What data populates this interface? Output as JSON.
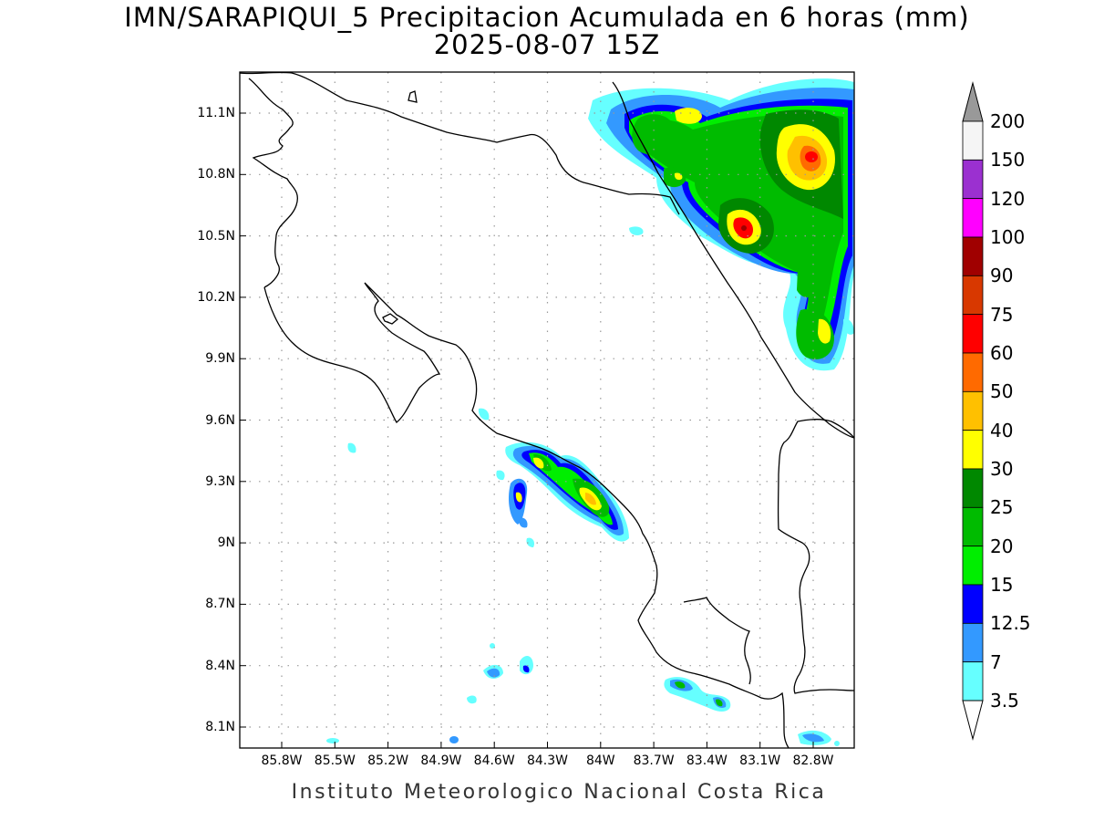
{
  "title": {
    "line1": "IMN/SARAPIQUI_5 Precipitacion Acumulada en 6 horas (mm)",
    "line2": "2025-08-07 15Z"
  },
  "footer": "Instituto Meteorologico Nacional Costa Rica",
  "axes": {
    "lon_range": [
      -86.0,
      -83.0
    ],
    "lat_range": [
      8.0,
      11.3
    ],
    "x_ticks": [
      {
        "value": -85.8,
        "label": "85.8W"
      },
      {
        "value": -85.5,
        "label": "85.5W"
      },
      {
        "value": -85.2,
        "label": "85.2W"
      },
      {
        "value": -84.9,
        "label": "84.9W"
      },
      {
        "value": -84.6,
        "label": "84.6W"
      },
      {
        "value": -84.3,
        "label": "84.3W"
      },
      {
        "value": -84.0,
        "label": "84W"
      },
      {
        "value": -83.7,
        "label": "83.7W"
      },
      {
        "value": -83.4,
        "label": "83.4W"
      },
      {
        "value": -83.1,
        "label": "83.1W"
      },
      {
        "value": -82.8,
        "label": "82.8W"
      }
    ],
    "y_ticks": [
      {
        "value": 11.1,
        "label": "11.1N"
      },
      {
        "value": 10.8,
        "label": "10.8N"
      },
      {
        "value": 10.5,
        "label": "10.5N"
      },
      {
        "value": 10.2,
        "label": "10.2N"
      },
      {
        "value": 9.9,
        "label": "9.9N"
      },
      {
        "value": 9.6,
        "label": "9.6N"
      },
      {
        "value": 9.3,
        "label": "9.3N"
      },
      {
        "value": 9.0,
        "label": "9N"
      },
      {
        "value": 8.7,
        "label": "8.7N"
      },
      {
        "value": 8.4,
        "label": "8.4N"
      },
      {
        "value": 8.1,
        "label": "8.1N"
      }
    ],
    "grid": true
  },
  "legend": {
    "placement": "right",
    "labels": [
      "200",
      "150",
      "120",
      "100",
      "90",
      "75",
      "60",
      "50",
      "40",
      "30",
      "25",
      "20",
      "15",
      "12.5",
      "7",
      "3.5"
    ],
    "colors": [
      "#f5f5f5",
      "#9b30d0",
      "#ff00ff",
      "#a00000",
      "#d83800",
      "#ff0000",
      "#ff6a00",
      "#ffc000",
      "#ffff00",
      "#008800",
      "#00bb00",
      "#00ee00",
      "#0000ff",
      "#3399ff",
      "#66ffff"
    ],
    "over_color": "#999999",
    "under_color": "#ffffff"
  },
  "chart_data": {
    "type": "heatmap",
    "title": "IMN/SARAPIQUI_5 Precipitacion Acumulada en 6 horas (mm)",
    "subtitle": "2025-08-07 15Z",
    "variable": "Precipitacion Acumulada en 6 horas (mm)",
    "levels": [
      3.5,
      7,
      12.5,
      15,
      20,
      25,
      30,
      40,
      50,
      60,
      75,
      90,
      100,
      120,
      150,
      200
    ],
    "cells": [
      {
        "lon": -83.05,
        "lat": 10.92,
        "value": 40
      },
      {
        "lon": -83.18,
        "lat": 10.55,
        "value": 60
      },
      {
        "lon": -83.05,
        "lat": 10.6,
        "value": 25
      },
      {
        "lon": -83.6,
        "lat": 10.97,
        "value": 25
      },
      {
        "lon": -83.4,
        "lat": 11.08,
        "value": 30
      },
      {
        "lon": -83.0,
        "lat": 10.0,
        "value": 30
      },
      {
        "lon": -84.0,
        "lat": 9.22,
        "value": 40
      },
      {
        "lon": -84.25,
        "lat": 9.38,
        "value": 30
      },
      {
        "lon": -84.35,
        "lat": 9.22,
        "value": 30
      },
      {
        "lon": -83.15,
        "lat": 8.22,
        "value": 20
      },
      {
        "lon": -83.45,
        "lat": 8.3,
        "value": 15
      }
    ]
  }
}
